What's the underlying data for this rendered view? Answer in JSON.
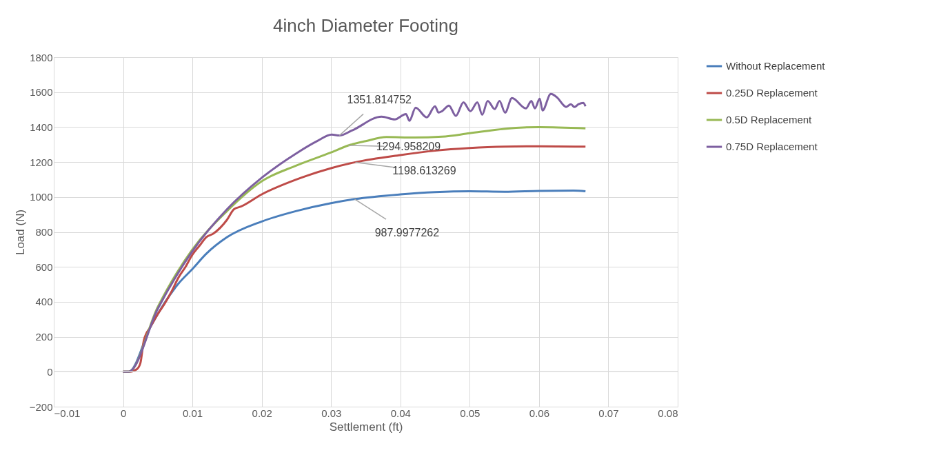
{
  "chart_data": {
    "type": "line",
    "title": "4inch Diameter Footing",
    "xlabel": "Settlement (ft)",
    "ylabel": "Load (N)",
    "xlim": [
      -0.01,
      0.08
    ],
    "xticks": [
      -0.01,
      0,
      0.01,
      0.02,
      0.03,
      0.04,
      0.05,
      0.06,
      0.07,
      0.08
    ],
    "ylim": [
      -200,
      1800
    ],
    "yticks": [
      -200,
      0,
      200,
      400,
      600,
      800,
      1000,
      1200,
      1400,
      1600,
      1800
    ],
    "grid": true,
    "legend": "right",
    "marker": "none",
    "line_style": "solid",
    "series": [
      {
        "name": "Without Replacement",
        "color": "#4a7ebb",
        "x": [
          0,
          0.0008,
          0.004,
          0.008,
          0.01,
          0.012,
          0.015,
          0.02,
          0.025,
          0.03,
          0.0334,
          0.04,
          0.045,
          0.05,
          0.055,
          0.06,
          0.065,
          0.0667
        ],
        "values": [
          0,
          0,
          260,
          505,
          588,
          675,
          770,
          860,
          920,
          965,
          988,
          1015,
          1028,
          1033,
          1030,
          1035,
          1037,
          1033
        ]
      },
      {
        "name": "0.25D Replacement",
        "color": "#be4b48",
        "x": [
          0,
          0.001,
          0.002,
          0.0025,
          0.003,
          0.004,
          0.005,
          0.006,
          0.007,
          0.008,
          0.009,
          0.01,
          0.011,
          0.012,
          0.013,
          0.015,
          0.016,
          0.017,
          0.02,
          0.025,
          0.03,
          0.0335,
          0.04,
          0.045,
          0.05,
          0.055,
          0.06,
          0.0667
        ],
        "values": [
          0,
          0,
          15,
          50,
          180,
          260,
          330,
          390,
          460,
          540,
          600,
          670,
          720,
          770,
          790,
          870,
          930,
          945,
          1015,
          1100,
          1165,
          1199,
          1240,
          1265,
          1280,
          1288,
          1290,
          1288
        ]
      },
      {
        "name": "0.5D Replacement",
        "color": "#98b954",
        "x": [
          0,
          0.0008,
          0.005,
          0.01,
          0.015,
          0.02,
          0.025,
          0.03,
          0.0325,
          0.035,
          0.038,
          0.042,
          0.046,
          0.05,
          0.055,
          0.06,
          0.0667
        ],
        "values": [
          0,
          0,
          370,
          700,
          920,
          1090,
          1180,
          1255,
          1295,
          1320,
          1343,
          1340,
          1345,
          1365,
          1390,
          1400,
          1393
        ]
      },
      {
        "name": "0.75D Replacement",
        "color": "#7d5fa0",
        "x": [
          0,
          0.0008,
          0.005,
          0.01,
          0.015,
          0.02,
          0.025,
          0.028,
          0.0301,
          0.0312,
          0.033,
          0.0373,
          0.0392,
          0.0408,
          0.0413,
          0.0422,
          0.0438,
          0.045,
          0.0455,
          0.046,
          0.047,
          0.048,
          0.0491,
          0.0501,
          0.0511,
          0.0518,
          0.0526,
          0.0536,
          0.0543,
          0.0551,
          0.0561,
          0.0581,
          0.0589,
          0.0594,
          0.0601,
          0.0605,
          0.0617,
          0.0626,
          0.0636,
          0.0639,
          0.0646,
          0.0651,
          0.0657,
          0.0664,
          0.0667
        ],
        "values": [
          0,
          0,
          360,
          690,
          930,
          1110,
          1250,
          1320,
          1357,
          1352,
          1380,
          1460,
          1444,
          1475,
          1436,
          1511,
          1456,
          1519,
          1483,
          1491,
          1523,
          1464,
          1542,
          1491,
          1542,
          1471,
          1550,
          1503,
          1550,
          1483,
          1566,
          1507,
          1550,
          1507,
          1562,
          1495,
          1590,
          1570,
          1523,
          1515,
          1531,
          1515,
          1531,
          1539,
          1519
        ]
      }
    ],
    "annotations": [
      {
        "text": "1351.814752",
        "x": 0.0312,
        "y": 1351.814752
      },
      {
        "text": "1294.958209",
        "x": 0.0325,
        "y": 1294.958209
      },
      {
        "text": "1198.613269",
        "x": 0.0335,
        "y": 1198.613269
      },
      {
        "text": "987.9977262",
        "x": 0.0334,
        "y": 987.9977262
      }
    ]
  }
}
